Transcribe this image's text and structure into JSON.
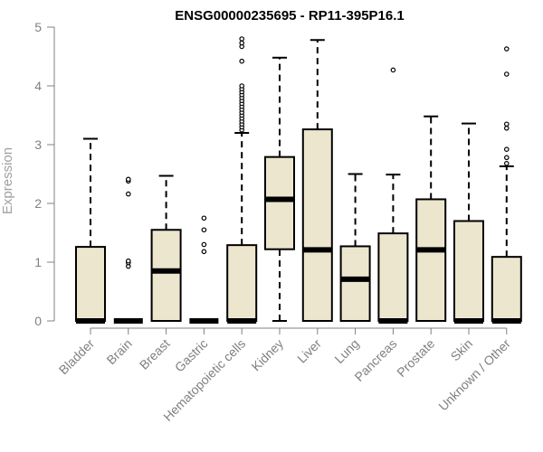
{
  "chart_data": {
    "type": "boxplot",
    "title": "ENSG00000235695 - RP11-395P16.1",
    "xlabel": "",
    "ylabel": "Expression",
    "ylim": [
      0,
      5
    ],
    "yticks": [
      "0",
      "1",
      "2",
      "3",
      "4",
      "5"
    ],
    "categories": [
      "Bladder",
      "Brain",
      "Breast",
      "Gastric",
      "Hematopoietic cells",
      "Kidney",
      "Liver",
      "Lung",
      "Pancreas",
      "Prostate",
      "Skin",
      "Unknown / Other"
    ],
    "series": [
      {
        "name": "Bladder",
        "q1": 0,
        "median": 0,
        "q3": 1.26,
        "whisker_low": 0,
        "whisker_high": 3.1,
        "outliers": []
      },
      {
        "name": "Brain",
        "q1": 0,
        "median": 0,
        "q3": 0,
        "whisker_low": 0,
        "whisker_high": 0,
        "outliers": [
          0.93,
          0.99,
          1.02,
          2.16,
          2.38,
          2.41
        ]
      },
      {
        "name": "Breast",
        "q1": 0,
        "median": 0.85,
        "q3": 1.55,
        "whisker_low": 0,
        "whisker_high": 2.47,
        "outliers": []
      },
      {
        "name": "Gastric",
        "q1": 0,
        "median": 0,
        "q3": 0,
        "whisker_low": 0,
        "whisker_high": 0,
        "outliers": [
          1.18,
          1.3,
          1.55,
          1.75
        ]
      },
      {
        "name": "Hematopoietic cells",
        "q1": 0,
        "median": 0,
        "q3": 1.29,
        "whisker_low": 0,
        "whisker_high": 3.2,
        "outliers": [
          3.25,
          3.3,
          3.35,
          3.4,
          3.45,
          3.5,
          3.55,
          3.6,
          3.65,
          3.7,
          3.75,
          3.8,
          3.85,
          3.9,
          3.95,
          4.0,
          4.42,
          4.67,
          4.73,
          4.8
        ]
      },
      {
        "name": "Kidney",
        "q1": 1.22,
        "median": 2.07,
        "q3": 2.79,
        "whisker_low": 0,
        "whisker_high": 4.48,
        "outliers": []
      },
      {
        "name": "Liver",
        "q1": 0,
        "median": 1.21,
        "q3": 3.26,
        "whisker_low": 0,
        "whisker_high": 4.78,
        "outliers": []
      },
      {
        "name": "Lung",
        "q1": 0,
        "median": 0.71,
        "q3": 1.27,
        "whisker_low": 0,
        "whisker_high": 2.5,
        "outliers": []
      },
      {
        "name": "Pancreas",
        "q1": 0,
        "median": 0,
        "q3": 1.49,
        "whisker_low": 0,
        "whisker_high": 2.49,
        "outliers": [
          4.27
        ]
      },
      {
        "name": "Prostate",
        "q1": 0,
        "median": 1.21,
        "q3": 2.07,
        "whisker_low": 0,
        "whisker_high": 3.48,
        "outliers": []
      },
      {
        "name": "Skin",
        "q1": 0,
        "median": 0,
        "q3": 1.7,
        "whisker_low": 0,
        "whisker_high": 3.36,
        "outliers": []
      },
      {
        "name": "Unknown / Other",
        "q1": 0,
        "median": 0,
        "q3": 1.09,
        "whisker_low": 0,
        "whisker_high": 2.63,
        "outliers": [
          2.68,
          2.78,
          2.92,
          3.28,
          3.35,
          4.2,
          4.63
        ]
      }
    ]
  },
  "colors": {
    "box_fill": "#ede6cf",
    "axis_gray": "#808080"
  }
}
